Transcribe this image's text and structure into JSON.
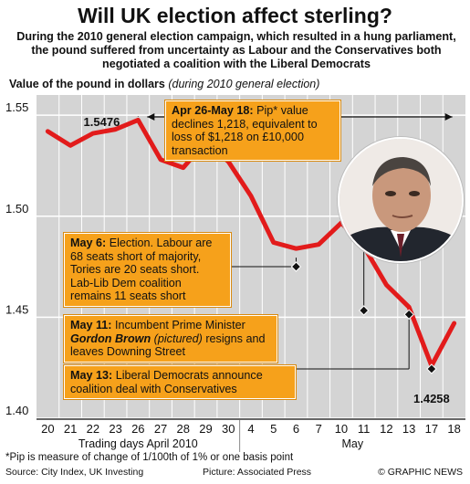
{
  "title": "Will UK election affect sterling?",
  "subtitle": "During the 2010 general election campaign, which resulted in a hung parliament, the pound suffered from uncertainty as Labour and the Conservatives both negotiated a coalition with the Liberal Democrats",
  "ylabel_main": "Value of the pound in dollars",
  "ylabel_note": "(during 2010 general election)",
  "callouts": {
    "pip": {
      "head": "Apr 26-May 18:",
      "text": " Pip* value declines 1,218, equivalent to loss of $1,218 on £10,000 transaction"
    },
    "election": {
      "head": "May 6:",
      "text": " Election. Labour are 68 seats short of majority, Tories are 20 seats short. Lab-Lib Dem coalition remains 11 seats short"
    },
    "brown": {
      "head": "May 11:",
      "text1": " Incumbent Prime Minister ",
      "name": "Gordon Brown",
      "paren": " (pictured)",
      "text2": " resigns and leaves Downing Street"
    },
    "libdem": {
      "head": "May 13:",
      "text": " Liberal Democrats announce coalition deal with Conservatives"
    }
  },
  "footnote": "*Pip is measure of change of 1/100th of 1% or one basis point",
  "source": "Source: City Index, UK Investing",
  "credit": "Picture: Associated Press",
  "brand": "© GRAPHIC NEWS",
  "colors": {
    "line": "#e21b1b",
    "plot_bg": "#d4d4d4",
    "callout": "#f6a11b"
  },
  "chart_data": {
    "type": "line",
    "x": [
      "20",
      "21",
      "22",
      "23",
      "26",
      "27",
      "28",
      "29",
      "30",
      "4",
      "5",
      "6",
      "7",
      "10",
      "11",
      "12",
      "13",
      "17",
      "18"
    ],
    "x_group_labels": [
      "Trading days April 2010",
      "May"
    ],
    "y": [
      1.542,
      1.535,
      1.541,
      1.543,
      1.5476,
      1.528,
      1.524,
      1.537,
      1.527,
      1.51,
      1.487,
      1.484,
      1.486,
      1.4967,
      1.485,
      1.466,
      1.455,
      1.426,
      1.447
    ],
    "ylim": [
      1.4,
      1.56
    ],
    "yticks": [
      "1.40",
      "1.45",
      "1.50",
      "1.55"
    ],
    "annotations": {
      "high": "1.5476",
      "low": "1.4258"
    }
  }
}
